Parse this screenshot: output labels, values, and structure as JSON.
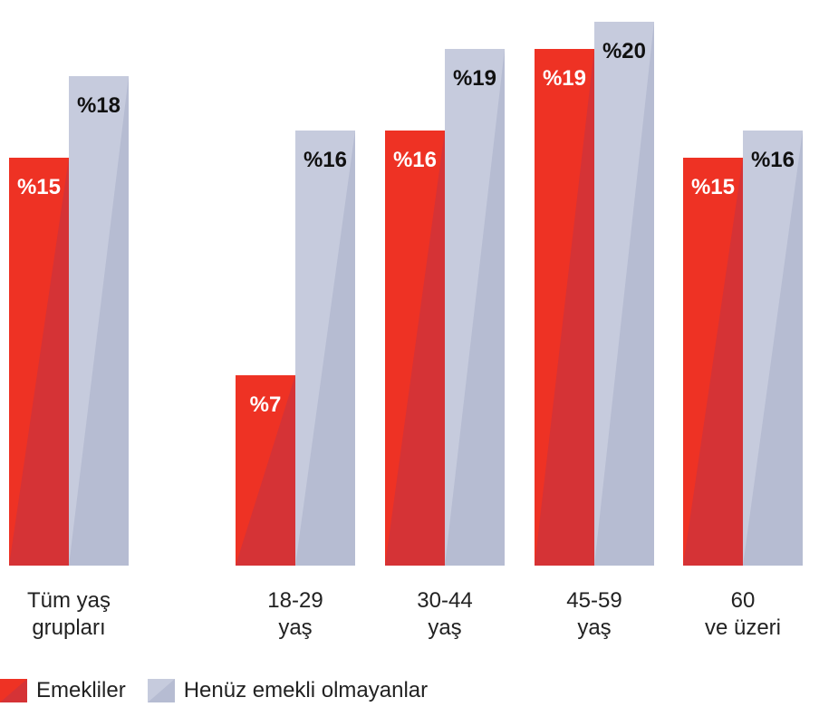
{
  "chart_data": {
    "type": "bar",
    "title": "",
    "xlabel": "",
    "ylabel": "",
    "categories": [
      [
        "Tüm yaş",
        "grupları"
      ],
      [
        "18-29",
        "yaş"
      ],
      [
        "30-44",
        "yaş"
      ],
      [
        "45-59",
        "yaş"
      ],
      [
        "60",
        "ve üzeri"
      ]
    ],
    "series": [
      {
        "name": "Emekliler",
        "values": [
          15,
          7,
          16,
          19,
          15
        ],
        "labels": [
          "%15",
          "%7",
          "%16",
          "%19",
          "%15"
        ]
      },
      {
        "name": "Henüz emekli olmayanlar",
        "values": [
          18,
          16,
          19,
          20,
          16
        ],
        "labels": [
          "%18",
          "%16",
          "%19",
          "%20",
          "%16"
        ]
      }
    ],
    "ylim": [
      0,
      20
    ],
    "grid": false,
    "legend_position": "bottom-left",
    "colors": {
      "Emekliler": "#ee3224",
      "Emekliler_shade": "#d53336",
      "Henüz emekli olmayanlar": "#c6cbdd",
      "Henüz emekli olmayanlar_shade": "#b6bcd2"
    }
  }
}
